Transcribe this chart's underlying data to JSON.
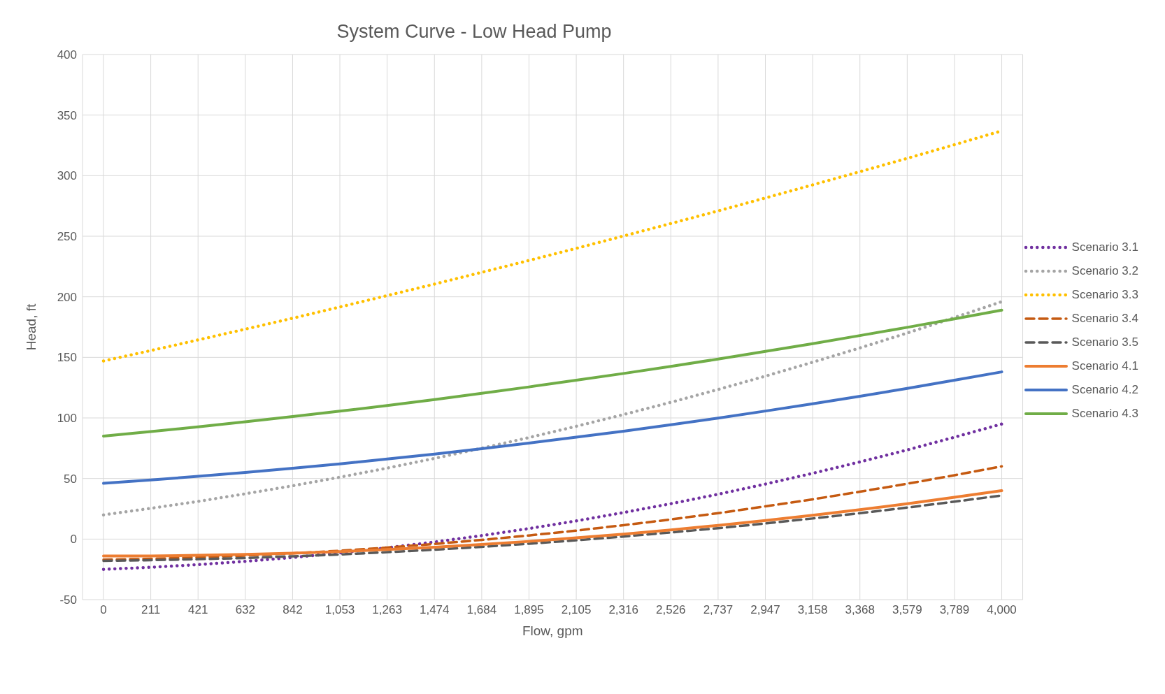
{
  "chart_data": {
    "type": "line",
    "title": "System Curve - Low Head Pump",
    "xlabel": "Flow, gpm",
    "ylabel": "Head, ft",
    "categories": [
      "0",
      "211",
      "421",
      "632",
      "842",
      "1,053",
      "1,263",
      "1,474",
      "1,684",
      "1,895",
      "2,105",
      "2,316",
      "2,526",
      "2,737",
      "2,947",
      "3,158",
      "3,368",
      "3,579",
      "3,789",
      "4,000"
    ],
    "ylim": [
      -50,
      400
    ],
    "yticks": [
      -50,
      0,
      50,
      100,
      150,
      200,
      250,
      300,
      350,
      400
    ],
    "grid": true,
    "legend": "right",
    "marker": "none",
    "series": [
      {
        "name": "Scenario 3.1",
        "color": "#7030a0",
        "line_style": "dotted",
        "values": [
          -25,
          -23.3,
          -21.1,
          -18.4,
          -15.2,
          -11.4,
          -7.2,
          -2.4,
          2.9,
          8.7,
          15,
          21.9,
          29.2,
          37,
          45.4,
          54.3,
          63.7,
          73.6,
          84.1,
          95
        ]
      },
      {
        "name": "Scenario 3.2",
        "color": "#a5a5a5",
        "line_style": "dotted",
        "values": [
          20,
          25.4,
          31.1,
          37.4,
          44,
          51.1,
          58.6,
          66.6,
          75,
          83.8,
          93.1,
          102.8,
          112.9,
          123.5,
          134.5,
          146,
          157.8,
          170.1,
          182.9,
          196
        ]
      },
      {
        "name": "Scenario 3.3",
        "color": "#ffc000",
        "line_style": "dotted",
        "values": [
          147,
          155.6,
          164.4,
          173.3,
          182.3,
          191.6,
          201,
          210.5,
          220.2,
          230,
          240,
          250.2,
          260.5,
          270.9,
          281.6,
          292.4,
          303.3,
          314.3,
          325.6,
          337
        ]
      },
      {
        "name": "Scenario 3.4",
        "color": "#c55a11",
        "line_style": "dashed",
        "values": [
          -17,
          -16.3,
          -15.1,
          -13.6,
          -11.8,
          -9.6,
          -7,
          -4,
          -0.7,
          3,
          7,
          11.5,
          16.2,
          21.4,
          27,
          32.8,
          39.1,
          45.7,
          52.7,
          60
        ]
      },
      {
        "name": "Scenario 3.5",
        "color": "#595959",
        "line_style": "dashed",
        "values": [
          -18,
          -17.4,
          -16.6,
          -15.6,
          -14.2,
          -12.7,
          -10.8,
          -8.8,
          -6.4,
          -3.8,
          -1,
          2.1,
          5.5,
          9,
          12.9,
          17,
          21.4,
          26,
          30.9,
          36
        ]
      },
      {
        "name": "Scenario 4.1",
        "color": "#ed7d31",
        "line_style": "solid",
        "values": [
          -14,
          -13.9,
          -13.4,
          -12.7,
          -11.6,
          -10.3,
          -8.6,
          -6.7,
          -4.4,
          -1.9,
          1,
          4.1,
          7.5,
          11.3,
          15.3,
          19.7,
          24.3,
          29.2,
          34.5,
          40
        ]
      },
      {
        "name": "Scenario 4.2",
        "color": "#4472c4",
        "line_style": "solid",
        "values": [
          46,
          48.8,
          51.8,
          55,
          58.5,
          62.1,
          66.1,
          70.2,
          74.6,
          79.2,
          84.1,
          89.1,
          94.4,
          99.9,
          105.7,
          111.7,
          117.9,
          124.4,
          131.1,
          138
        ]
      },
      {
        "name": "Scenario 4.3",
        "color": "#70ad47",
        "line_style": "solid",
        "values": [
          85,
          88.7,
          92.7,
          96.8,
          101.1,
          105.6,
          110.3,
          115.2,
          120.3,
          125.6,
          131.1,
          136.7,
          142.6,
          148.6,
          154.9,
          161.3,
          168,
          174.8,
          181.8,
          189
        ]
      }
    ]
  }
}
